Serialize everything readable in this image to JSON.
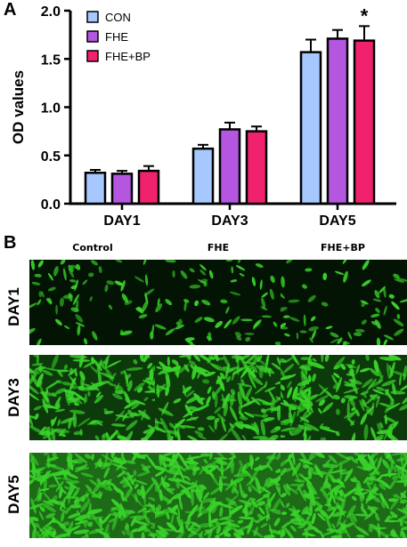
{
  "panel_a_label": "A",
  "panel_b_label": "B",
  "chart_data": {
    "type": "bar",
    "title": "",
    "xlabel": "",
    "ylabel": "OD values",
    "ylim": [
      0,
      2.0
    ],
    "yticks": [
      "0.0",
      "0.5",
      "1.0",
      "1.5",
      "2.0"
    ],
    "categories": [
      "DAY1",
      "DAY3",
      "DAY5"
    ],
    "legend_position": "top-left",
    "series": [
      {
        "name": "CON",
        "color": "#A6C8FF",
        "values": [
          0.32,
          0.57,
          1.57
        ],
        "errors": [
          0.03,
          0.04,
          0.13
        ]
      },
      {
        "name": "FHE",
        "color": "#B556E0",
        "values": [
          0.31,
          0.77,
          1.71
        ],
        "errors": [
          0.03,
          0.07,
          0.09
        ]
      },
      {
        "name": "FHE+BP",
        "color": "#F0226E",
        "values": [
          0.34,
          0.75,
          1.69
        ],
        "errors": [
          0.05,
          0.05,
          0.15
        ]
      }
    ],
    "annotations": [
      {
        "category": "DAY5",
        "series": "FHE+BP",
        "text": "*"
      }
    ]
  },
  "micrographs": {
    "columns": [
      "Control",
      "FHE",
      "FHE+BP"
    ],
    "rows": [
      "DAY1",
      "DAY3",
      "DAY5"
    ],
    "fluorescence_color": "#39D22A"
  }
}
